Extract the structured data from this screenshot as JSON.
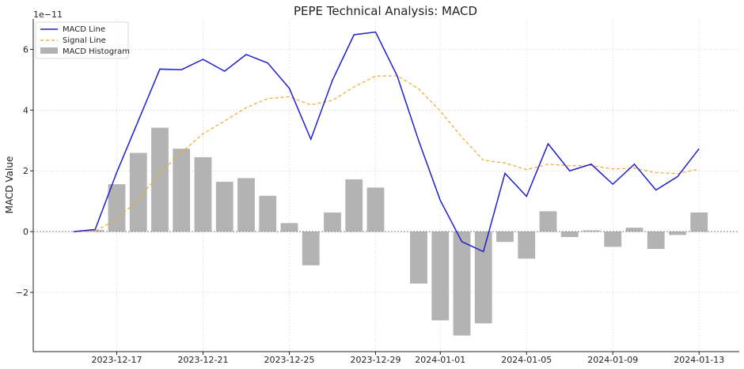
{
  "chart_data": {
    "type": "line",
    "title": "PEPE Technical Analysis: MACD",
    "xlabel": "",
    "ylabel": "MACD Value",
    "offset_text": "1e−11",
    "x": [
      "2023-12-15",
      "2023-12-16",
      "2023-12-17",
      "2023-12-18",
      "2023-12-19",
      "2023-12-20",
      "2023-12-21",
      "2023-12-22",
      "2023-12-23",
      "2023-12-24",
      "2023-12-25",
      "2023-12-26",
      "2023-12-27",
      "2023-12-28",
      "2023-12-29",
      "2023-12-30",
      "2023-12-31",
      "2024-01-01",
      "2024-01-02",
      "2024-01-03",
      "2024-01-04",
      "2024-01-05",
      "2024-01-06",
      "2024-01-07",
      "2024-01-08",
      "2024-01-09",
      "2024-01-10",
      "2024-01-11",
      "2024-01-12",
      "2024-01-13"
    ],
    "x_ticks": [
      "2023-12-17",
      "2023-12-21",
      "2023-12-25",
      "2023-12-29",
      "2024-01-01",
      "2024-01-05",
      "2024-01-09",
      "2024-01-13"
    ],
    "x_tick_indices": [
      2,
      6,
      10,
      14,
      17,
      21,
      25,
      29
    ],
    "y_ticks": [
      -2,
      0,
      2,
      4,
      6
    ],
    "y_tick_labels": [
      "−2",
      "0",
      "2",
      "4",
      "6"
    ],
    "ylim": [
      -3.95,
      7.0
    ],
    "grid": true,
    "legend_position": "top-left",
    "colors": {
      "macd": "#1f1fcc",
      "signal": "#f5a623",
      "hist": "#b3b3b3",
      "zero": "#808080"
    },
    "series": [
      {
        "name": "MACD Line",
        "style": "solid",
        "values": [
          0.0,
          0.07,
          1.95,
          3.65,
          5.35,
          5.33,
          5.67,
          5.28,
          5.83,
          5.55,
          4.72,
          3.04,
          4.98,
          6.48,
          6.57,
          5.13,
          2.99,
          1.03,
          -0.33,
          -0.66,
          1.92,
          1.16,
          2.89,
          2.0,
          2.22,
          1.56,
          2.22,
          1.37,
          1.81,
          2.73
        ]
      },
      {
        "name": "Signal Line",
        "style": "dashed",
        "values": [
          0.0,
          0.02,
          0.4,
          1.06,
          1.93,
          2.6,
          3.22,
          3.64,
          4.08,
          4.38,
          4.44,
          4.17,
          4.32,
          4.76,
          5.12,
          5.13,
          4.7,
          3.97,
          3.11,
          2.35,
          2.26,
          2.04,
          2.22,
          2.17,
          2.18,
          2.06,
          2.09,
          1.94,
          1.91,
          2.06
        ]
      },
      {
        "name": "MACD Histogram",
        "style": "bar",
        "values": [
          0.0,
          0.05,
          1.56,
          2.59,
          3.42,
          2.73,
          2.45,
          1.64,
          1.76,
          1.18,
          0.28,
          -1.11,
          0.63,
          1.72,
          1.45,
          0.0,
          -1.71,
          -2.92,
          -3.42,
          -3.02,
          -0.34,
          -0.89,
          0.67,
          -0.18,
          0.04,
          -0.5,
          0.13,
          -0.57,
          -0.11,
          0.63
        ]
      }
    ]
  }
}
